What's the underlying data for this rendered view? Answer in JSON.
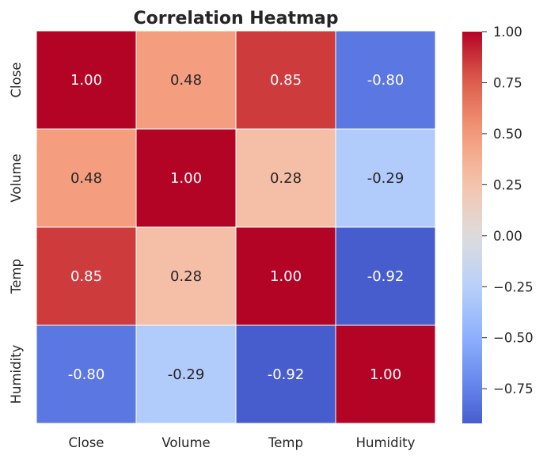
{
  "chart_data": {
    "type": "heatmap",
    "title": "Correlation Heatmap",
    "x_labels": [
      "Close",
      "Volume",
      "Temp",
      "Humidity"
    ],
    "y_labels": [
      "Close",
      "Volume",
      "Temp",
      "Humidity"
    ],
    "values": [
      [
        1.0,
        0.48,
        0.85,
        -0.8
      ],
      [
        0.48,
        1.0,
        0.28,
        -0.29
      ],
      [
        0.85,
        0.28,
        1.0,
        -0.92
      ],
      [
        -0.8,
        -0.29,
        -0.92,
        1.0
      ]
    ],
    "value_format": "0.00",
    "colormap": "coolwarm",
    "vmin": -0.92,
    "vmax": 1.0,
    "colorbar_ticks": [
      1.0,
      0.75,
      0.5,
      0.25,
      0.0,
      -0.25,
      -0.5,
      -0.75
    ],
    "colorbar_tick_labels": [
      "1.00",
      "0.75",
      "0.50",
      "0.25",
      "0.00",
      "−0.25",
      "−0.50",
      "−0.75"
    ],
    "cell_separator_color": "#ffffff",
    "text_dark": "#262626",
    "text_light": "#ffffff"
  }
}
